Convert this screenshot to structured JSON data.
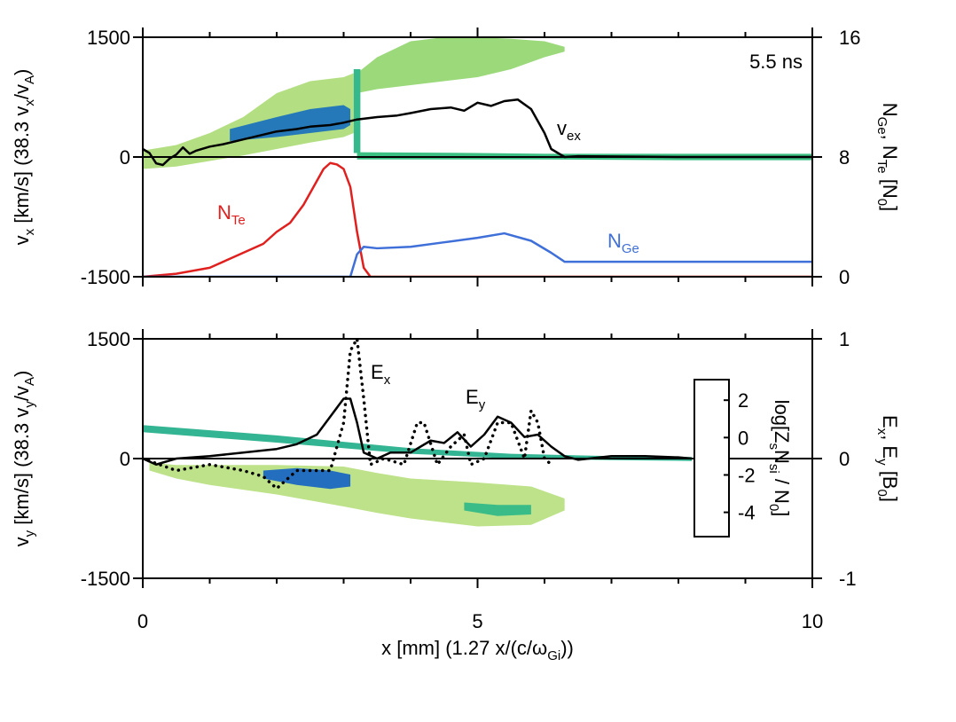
{
  "chart_data": [
    {
      "type": "line",
      "annotation": "5.5 ns",
      "ylabel": [
        {
          "text": "v"
        },
        {
          "sub": "x"
        },
        {
          "text": " [km/s] (38.3 v"
        },
        {
          "sub": "x"
        },
        {
          "text": "/v"
        },
        {
          "sub": "A"
        },
        {
          "text": ")"
        }
      ],
      "y2label": [
        {
          "text": "N"
        },
        {
          "sub": "Ge"
        },
        {
          "text": ", N"
        },
        {
          "sub": "Te"
        },
        {
          "text": " [N"
        },
        {
          "sub": "0"
        },
        {
          "text": "]"
        }
      ],
      "xlim": [
        0,
        10
      ],
      "xticks": [
        0,
        5,
        10
      ],
      "xminor": [
        1,
        2,
        3,
        4,
        6,
        7,
        8,
        9
      ],
      "xtick_labels": false,
      "ylim": [
        -1500,
        1500
      ],
      "yticks": [
        1500,
        0,
        -1500
      ],
      "y2lim": [
        0,
        16
      ],
      "y2ticks": [
        16,
        8,
        0
      ],
      "series": [
        {
          "name": [
            {
              "text": "v"
            },
            {
              "sub": "ex"
            }
          ],
          "color": "#000000",
          "axis": "y",
          "x": [
            0,
            0.1,
            0.2,
            0.3,
            0.4,
            0.5,
            0.6,
            0.7,
            0.8,
            1,
            1.2,
            1.5,
            1.8,
            2,
            2.3,
            2.5,
            2.8,
            3,
            3.2,
            3.5,
            3.8,
            4,
            4.3,
            4.6,
            4.8,
            5,
            5.2,
            5.4,
            5.6,
            5.8,
            5.9,
            6,
            6.1,
            6.3,
            6.5,
            8,
            10
          ],
          "values": [
            100,
            50,
            -80,
            -100,
            -20,
            30,
            120,
            40,
            80,
            130,
            160,
            220,
            280,
            320,
            350,
            380,
            400,
            430,
            470,
            500,
            520,
            550,
            600,
            620,
            580,
            680,
            640,
            700,
            720,
            600,
            450,
            300,
            100,
            0,
            10,
            0,
            0
          ]
        },
        {
          "name": [
            {
              "text": "N"
            },
            {
              "sub": "Te"
            }
          ],
          "color": "#e0201e",
          "axis": "y2",
          "x": [
            0,
            0.5,
            1,
            1.3,
            1.5,
            1.8,
            2,
            2.2,
            2.4,
            2.6,
            2.7,
            2.8,
            2.9,
            3.0,
            3.1,
            3.2,
            3.3,
            3.4,
            10
          ],
          "values": [
            0,
            0.2,
            0.6,
            1.2,
            1.6,
            2.2,
            3,
            3.6,
            4.8,
            6.4,
            7.2,
            7.6,
            7.5,
            7.2,
            6,
            3,
            0.6,
            0,
            0
          ]
        },
        {
          "name": [
            {
              "text": "N"
            },
            {
              "sub": "Ge"
            }
          ],
          "color": "#3f6fd8",
          "axis": "y2",
          "x": [
            0,
            3.1,
            3.2,
            3.3,
            3.5,
            4,
            4.5,
            5,
            5.4,
            5.8,
            6.1,
            6.3,
            10
          ],
          "values": [
            0,
            0,
            1.5,
            2,
            1.9,
            2,
            2.3,
            2.6,
            2.9,
            2.4,
            1.6,
            1.0,
            1.0
          ]
        }
      ],
      "density": [
        {
          "x": [
            0,
            0.5,
            1,
            1.5,
            2,
            2.5,
            3,
            3.15
          ],
          "lo": [
            -150,
            -120,
            -50,
            20,
            100,
            180,
            250,
            300
          ],
          "hi": [
            80,
            150,
            300,
            500,
            800,
            950,
            1000,
            1050
          ],
          "level": 0.6
        },
        {
          "x": [
            1.3,
            2,
            2.5,
            3,
            3.1
          ],
          "lo": [
            200,
            250,
            300,
            350,
            400
          ],
          "hi": [
            350,
            500,
            600,
            650,
            600
          ],
          "level": 2.6
        },
        {
          "x": [
            3.2,
            3.5,
            4,
            4.5,
            5,
            5.5,
            6,
            6.3
          ],
          "lo": [
            800,
            850,
            900,
            950,
            1000,
            1100,
            1250,
            1320
          ],
          "hi": [
            1050,
            1250,
            1450,
            1500,
            1500,
            1480,
            1450,
            1380
          ],
          "level": 0.8
        },
        {
          "x": [
            3.15,
            3.25
          ],
          "lo": [
            50,
            50
          ],
          "hi": [
            1100,
            1100
          ],
          "level": 1.8
        },
        {
          "x": [
            3.2,
            5,
            6,
            8,
            10
          ],
          "lo": [
            -30,
            -30,
            -30,
            -40,
            -40
          ],
          "hi": [
            60,
            50,
            40,
            40,
            40
          ],
          "level": 1.6
        }
      ]
    },
    {
      "type": "line",
      "xlabel": [
        {
          "text": "x [mm] (1.27 x/(c/ω"
        },
        {
          "sub": "Gi"
        },
        {
          "text": "))"
        }
      ],
      "ylabel": [
        {
          "text": "v"
        },
        {
          "sub": "y"
        },
        {
          "text": " [km/s] (38.3 v"
        },
        {
          "sub": "y"
        },
        {
          "text": "/v"
        },
        {
          "sub": "A"
        },
        {
          "text": ")"
        }
      ],
      "y2label": [
        {
          "text": "E"
        },
        {
          "sub": "x"
        },
        {
          "text": ", E"
        },
        {
          "sub": "y"
        },
        {
          "text": " [B"
        },
        {
          "sub": "0"
        },
        {
          "text": "]"
        }
      ],
      "xlim": [
        0,
        10
      ],
      "xticks": [
        0,
        5,
        10
      ],
      "xminor": [
        1,
        2,
        3,
        4,
        6,
        7,
        8,
        9
      ],
      "xtick_labels": true,
      "ylim": [
        -1500,
        1500
      ],
      "yticks": [
        1500,
        0,
        -1500
      ],
      "y2lim": [
        -1,
        1
      ],
      "y2ticks": [
        1,
        0,
        -1
      ],
      "series": [
        {
          "name": [
            {
              "text": "E"
            },
            {
              "sub": "x"
            }
          ],
          "color": "#000000",
          "axis": "y2",
          "dash": "dotted",
          "x": [
            0,
            0.5,
            1,
            1.5,
            1.8,
            2,
            2.3,
            2.5,
            2.8,
            3,
            3.1,
            3.2,
            3.3,
            3.4,
            3.6,
            3.9,
            4.1,
            4.2,
            4.4,
            4.6,
            4.8,
            4.9,
            5.1,
            5.3,
            5.5,
            5.7,
            5.8,
            5.9,
            6,
            6.1
          ],
          "values": [
            0,
            -0.1,
            -0.05,
            -0.1,
            -0.15,
            -0.25,
            -0.1,
            -0.1,
            -0.1,
            0.3,
            0.9,
            1.0,
            0.5,
            -0.05,
            0,
            -0.05,
            0.3,
            0.3,
            -0.05,
            0.1,
            0.2,
            -0.05,
            0,
            0.3,
            0.3,
            0,
            0.4,
            0.3,
            0,
            -0.05
          ]
        },
        {
          "name": [
            {
              "text": "E"
            },
            {
              "sub": "y"
            }
          ],
          "color": "#000000",
          "axis": "y2",
          "x": [
            0,
            0.2,
            0.5,
            1,
            1.5,
            2,
            2.3,
            2.6,
            2.8,
            3,
            3.1,
            3.2,
            3.3,
            3.5,
            3.7,
            4,
            4.3,
            4.5,
            4.7,
            4.9,
            5.1,
            5.3,
            5.5,
            5.7,
            5.9,
            6.1,
            6.3,
            6.5,
            7,
            7.5,
            8,
            8.2
          ],
          "values": [
            0,
            -0.05,
            0,
            0.02,
            0.05,
            0.08,
            0.12,
            0.2,
            0.35,
            0.5,
            0.5,
            0.3,
            0.05,
            0,
            0.05,
            0.05,
            0.15,
            0.13,
            0.22,
            0.1,
            0.2,
            0.35,
            0.3,
            0.18,
            0.2,
            0.1,
            0.02,
            -0.01,
            0.02,
            0.02,
            0.01,
            0
          ]
        }
      ],
      "density": [
        {
          "x": [
            0.1,
            0.5,
            1,
            2,
            3,
            3.5,
            4,
            5,
            5.8,
            6.3
          ],
          "lo": [
            -150,
            -250,
            -330,
            -450,
            -600,
            -680,
            -750,
            -850,
            -830,
            -650
          ],
          "hi": [
            -50,
            -80,
            -80,
            -80,
            -100,
            -180,
            -250,
            -300,
            -350,
            -500
          ],
          "level": 0.5
        },
        {
          "x": [
            0,
            2,
            4,
            5.5,
            7,
            8.2
          ],
          "lo": [
            330,
            200,
            60,
            0,
            -20,
            -30
          ],
          "hi": [
            420,
            290,
            130,
            60,
            30,
            20
          ],
          "level": 1.9
        },
        {
          "x": [
            1.8,
            2.3,
            2.8,
            3.1
          ],
          "lo": [
            -250,
            -330,
            -380,
            -350
          ],
          "hi": [
            -150,
            -120,
            -150,
            -200
          ],
          "level": 2.7
        },
        {
          "x": [
            4.8,
            5.3,
            5.8
          ],
          "lo": [
            -650,
            -720,
            -700
          ],
          "hi": [
            -550,
            -580,
            -580
          ],
          "level": 1.7
        }
      ],
      "colorbar": {
        "label": [
          {
            "text": "log[Z"
          },
          {
            "sub": "s"
          },
          {
            "text": "N"
          },
          {
            "sub": "si"
          },
          {
            "text": " / N"
          },
          {
            "sub": "0"
          },
          {
            "text": "]"
          }
        ],
        "clim": [
          -5.3,
          3.1
        ],
        "ticks": [
          2,
          0,
          -2,
          -4
        ],
        "colormap": [
          [
            -5.3,
            "#ffffff"
          ],
          [
            -4,
            "#dcd3cf"
          ],
          [
            -2,
            "#8b6b5f"
          ],
          [
            -1,
            "#c9b089"
          ],
          [
            0,
            "#f2f0b0"
          ],
          [
            0.7,
            "#a8dc7a"
          ],
          [
            1.5,
            "#3fc47f"
          ],
          [
            2.2,
            "#2aa8a0"
          ],
          [
            3.1,
            "#1e3fd6"
          ]
        ]
      }
    }
  ]
}
